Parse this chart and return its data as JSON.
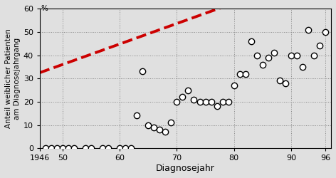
{
  "title": "",
  "ylabel": "Anteil weiblicher Patienten\nam Diagnosejahrgang",
  "xlabel": "Diagnosejahr",
  "ylim": [
    0,
    60
  ],
  "xlim": [
    1946,
    1997
  ],
  "yticks": [
    0,
    10,
    20,
    30,
    40,
    50,
    60
  ],
  "xticks": [
    1946,
    1950,
    1960,
    1970,
    1980,
    1990,
    1996
  ],
  "xtick_labels": [
    "1946",
    "50",
    "60",
    "70",
    "80",
    "90",
    "96"
  ],
  "scatter_x": [
    1947,
    1948,
    1949,
    1950,
    1951,
    1952,
    1954,
    1955,
    1957,
    1958,
    1960,
    1961,
    1962,
    1963,
    1964,
    1965,
    1966,
    1967,
    1968,
    1969,
    1970,
    1971,
    1972,
    1973,
    1974,
    1975,
    1976,
    1977,
    1978,
    1979,
    1980,
    1981,
    1982,
    1983,
    1984,
    1985,
    1986,
    1987,
    1988,
    1989,
    1990,
    1991,
    1992,
    1993,
    1994,
    1995,
    1996
  ],
  "scatter_y": [
    0,
    0,
    0,
    0,
    0,
    0,
    0,
    0,
    0,
    0,
    0,
    0,
    0,
    14,
    33,
    10,
    9,
    8,
    7,
    11,
    20,
    22,
    25,
    21,
    20,
    20,
    20,
    18,
    20,
    20,
    27,
    32,
    32,
    46,
    40,
    36,
    39,
    41,
    29,
    28,
    40,
    40,
    35,
    51,
    40,
    44,
    50
  ],
  "trend_x_start": 1946,
  "trend_x_end": 1996,
  "trend_slope": 0.88,
  "trend_intercept": -1680,
  "marker_size": 6,
  "marker_color": "white",
  "marker_edgecolor": "black",
  "marker_edgewidth": 1.0,
  "trend_color": "#cc0000",
  "trend_linewidth": 2.8,
  "trend_linestyle": "--",
  "grid_linestyle": ":",
  "grid_color": "#888888",
  "background_color": "#e0e0e0",
  "y_percent_label": "%"
}
